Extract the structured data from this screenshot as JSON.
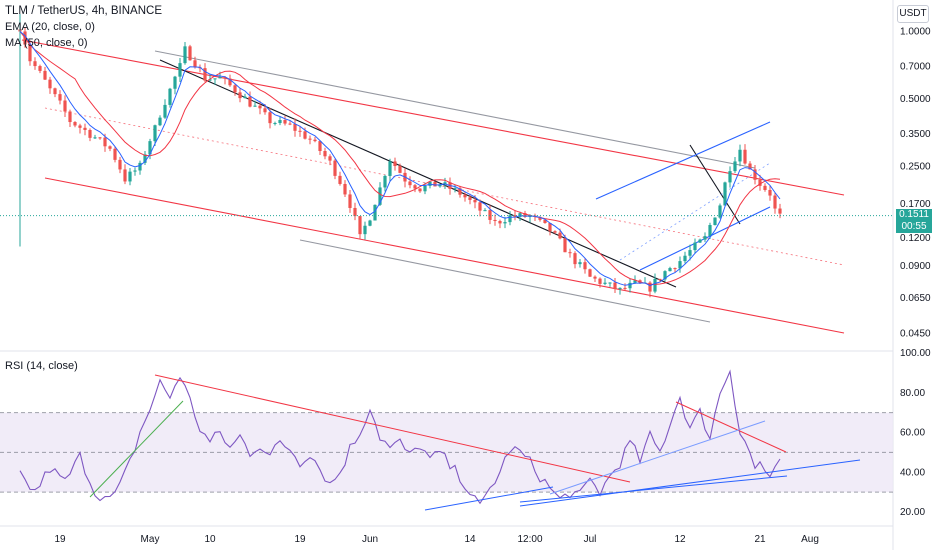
{
  "header": {
    "title": "TLM / TetherUS, 4h, BINANCE",
    "indicators": [
      "EMA (20, close, 0)",
      "MA (50, close, 0)"
    ],
    "currency_button": "USDT"
  },
  "rsi_header": {
    "label": "RSI (14, close)"
  },
  "last_price": {
    "value": "0.1511",
    "countdown": "00:55"
  },
  "colors": {
    "up": "#26a69a",
    "down": "#ef5350",
    "ema": "#2962ff",
    "ma": "#f23645",
    "rsi": "#7e57c2",
    "rsi_band": "#ede7f6",
    "trend_black": "#131722",
    "channel_gray": "#9598a1",
    "channel_red": "#f23645",
    "channel_blue": "#2962ff"
  },
  "chart_data": [
    {
      "type": "candlestick",
      "symbol": "TLM / TetherUS",
      "interval": "4h",
      "exchange": "BINANCE",
      "yscale": "log",
      "ylim": [
        0.038,
        1.25
      ],
      "yticks": [
        "1.0000",
        "0.7000",
        "0.5000",
        "0.3500",
        "0.2500",
        "0.1700",
        "0.1200",
        "0.0900",
        "0.0650",
        "0.0450"
      ],
      "xticks": [
        "19",
        "May",
        "10",
        "19",
        "Jun",
        "14",
        "12:00",
        "Jul",
        "12",
        "21",
        "Aug"
      ],
      "overlays": [
        "EMA (20, close, 0)",
        "MA (50, close, 0)"
      ],
      "last_price": 0.1511,
      "price_path": [
        [
          0,
          1.05
        ],
        [
          2,
          0.75
        ],
        [
          6,
          0.55
        ],
        [
          10,
          0.4
        ],
        [
          14,
          0.35
        ],
        [
          18,
          0.3
        ],
        [
          21,
          0.22
        ],
        [
          24,
          0.25
        ],
        [
          27,
          0.37
        ],
        [
          30,
          0.55
        ],
        [
          32,
          0.7
        ],
        [
          33,
          0.83
        ],
        [
          34,
          0.78
        ],
        [
          37,
          0.62
        ],
        [
          40,
          0.62
        ],
        [
          43,
          0.55
        ],
        [
          46,
          0.48
        ],
        [
          50,
          0.4
        ],
        [
          54,
          0.38
        ],
        [
          58,
          0.33
        ],
        [
          62,
          0.26
        ],
        [
          66,
          0.17
        ],
        [
          68,
          0.12
        ],
        [
          70,
          0.15
        ],
        [
          72,
          0.2
        ],
        [
          74,
          0.27
        ],
        [
          77,
          0.22
        ],
        [
          80,
          0.2
        ],
        [
          84,
          0.21
        ],
        [
          88,
          0.19
        ],
        [
          92,
          0.16
        ],
        [
          95,
          0.14
        ],
        [
          98,
          0.15
        ],
        [
          102,
          0.15
        ],
        [
          106,
          0.13
        ],
        [
          110,
          0.1
        ],
        [
          114,
          0.08
        ],
        [
          117,
          0.075
        ],
        [
          120,
          0.07
        ],
        [
          123,
          0.075
        ],
        [
          126,
          0.072
        ],
        [
          129,
          0.085
        ],
        [
          132,
          0.095
        ],
        [
          135,
          0.11
        ],
        [
          137,
          0.12
        ],
        [
          140,
          0.17
        ],
        [
          142,
          0.25
        ],
        [
          144,
          0.3
        ],
        [
          146,
          0.24
        ],
        [
          148,
          0.21
        ],
        [
          150,
          0.19
        ],
        [
          151,
          0.16
        ],
        [
          152,
          0.15
        ]
      ]
    },
    {
      "type": "line",
      "name": "RSI (14, close)",
      "ylim": [
        15,
        100
      ],
      "yticks": [
        "100.00",
        "80.00",
        "60.00",
        "40.00",
        "20.00"
      ],
      "band": [
        30,
        70
      ],
      "mid": 50,
      "path": [
        [
          0,
          38
        ],
        [
          3,
          30
        ],
        [
          6,
          42
        ],
        [
          9,
          35
        ],
        [
          12,
          48
        ],
        [
          15,
          30
        ],
        [
          18,
          26
        ],
        [
          20,
          33
        ],
        [
          22,
          45
        ],
        [
          24,
          60
        ],
        [
          26,
          72
        ],
        [
          28,
          85
        ],
        [
          30,
          78
        ],
        [
          32,
          89
        ],
        [
          34,
          76
        ],
        [
          36,
          62
        ],
        [
          38,
          55
        ],
        [
          40,
          60
        ],
        [
          42,
          52
        ],
        [
          44,
          58
        ],
        [
          46,
          50
        ],
        [
          48,
          54
        ],
        [
          50,
          48
        ],
        [
          52,
          55
        ],
        [
          54,
          52
        ],
        [
          56,
          45
        ],
        [
          58,
          50
        ],
        [
          60,
          42
        ],
        [
          62,
          34
        ],
        [
          64,
          40
        ],
        [
          66,
          52
        ],
        [
          68,
          60
        ],
        [
          70,
          73
        ],
        [
          72,
          58
        ],
        [
          74,
          52
        ],
        [
          76,
          55
        ],
        [
          78,
          48
        ],
        [
          80,
          54
        ],
        [
          82,
          46
        ],
        [
          84,
          50
        ],
        [
          86,
          43
        ],
        [
          88,
          38
        ],
        [
          90,
          30
        ],
        [
          92,
          22
        ],
        [
          94,
          32
        ],
        [
          96,
          40
        ],
        [
          98,
          52
        ],
        [
          100,
          50
        ],
        [
          102,
          45
        ],
        [
          104,
          38
        ],
        [
          106,
          32
        ],
        [
          108,
          26
        ],
        [
          110,
          30
        ],
        [
          112,
          28
        ],
        [
          114,
          36
        ],
        [
          116,
          30
        ],
        [
          118,
          38
        ],
        [
          120,
          45
        ],
        [
          122,
          55
        ],
        [
          124,
          46
        ],
        [
          126,
          58
        ],
        [
          128,
          50
        ],
        [
          130,
          65
        ],
        [
          132,
          78
        ],
        [
          134,
          62
        ],
        [
          136,
          70
        ],
        [
          138,
          58
        ],
        [
          140,
          80
        ],
        [
          142,
          92
        ],
        [
          144,
          60
        ],
        [
          145,
          56
        ],
        [
          147,
          42
        ],
        [
          148,
          45
        ],
        [
          150,
          37
        ],
        [
          152,
          44
        ]
      ]
    }
  ]
}
